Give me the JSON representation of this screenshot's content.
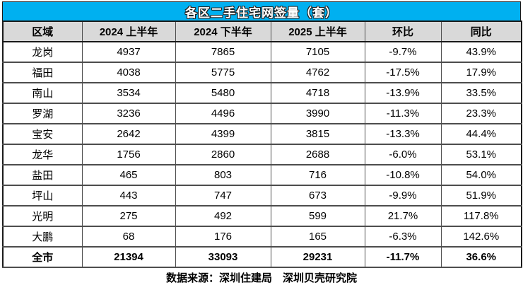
{
  "title": "各区二手住宅网签量（套）",
  "colors": {
    "title_bg": "#00B0F0",
    "title_text": "#FFFFFF",
    "header_bg": "#D9D9D9",
    "grid_line": "#4d4d4d",
    "body_bg": "#FFFFFF",
    "text": "#000000"
  },
  "table": {
    "columns": [
      "区域",
      "2024 上半年",
      "2024 下半年",
      "2025 上半年",
      "环比",
      "同比"
    ],
    "rows": [
      [
        "龙岗",
        "4937",
        "7865",
        "7105",
        "-9.7%",
        "43.9%"
      ],
      [
        "福田",
        "4038",
        "5775",
        "4762",
        "-17.5%",
        "17.9%"
      ],
      [
        "南山",
        "3534",
        "5480",
        "4718",
        "-13.9%",
        "33.5%"
      ],
      [
        "罗湖",
        "3236",
        "4496",
        "3990",
        "-11.3%",
        "23.3%"
      ],
      [
        "宝安",
        "2642",
        "4399",
        "3815",
        "-13.3%",
        "44.4%"
      ],
      [
        "龙华",
        "1756",
        "2860",
        "2688",
        "-6.0%",
        "53.1%"
      ],
      [
        "盐田",
        "465",
        "803",
        "716",
        "-10.8%",
        "54.0%"
      ],
      [
        "坪山",
        "443",
        "747",
        "673",
        "-9.9%",
        "51.9%"
      ],
      [
        "光明",
        "275",
        "492",
        "599",
        "21.7%",
        "117.8%"
      ],
      [
        "大鹏",
        "68",
        "176",
        "165",
        "-6.3%",
        "142.6%"
      ]
    ],
    "total_row": [
      "全市",
      "21394",
      "33093",
      "29231",
      "-11.7%",
      "36.6%"
    ]
  },
  "footer": "数据来源：深圳住建局　深圳贝壳研究院"
}
